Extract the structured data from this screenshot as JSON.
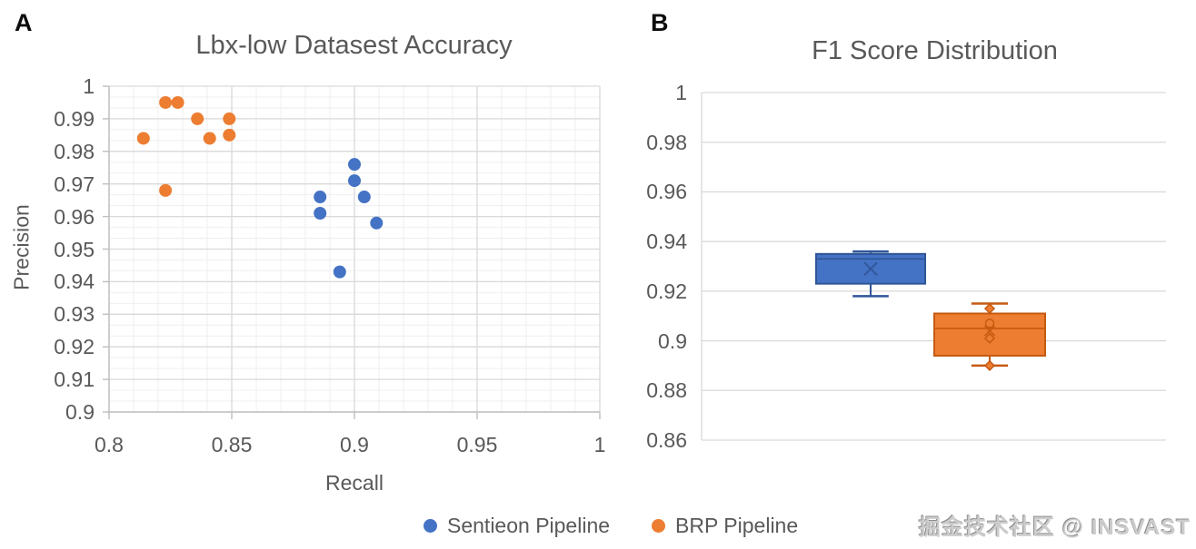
{
  "figure": {
    "panel_a_label": "A",
    "panel_b_label": "B"
  },
  "watermark": "掘金技术社区 @ INSVAST",
  "legend": {
    "items": [
      {
        "label": "Sentieon Pipeline",
        "color": "#4472C4"
      },
      {
        "label": "BRP Pipeline",
        "color": "#ED7D31"
      }
    ]
  },
  "colors": {
    "series_blue": "#4472C4",
    "series_blue_dark": "#2F5597",
    "series_orange": "#ED7D31",
    "series_orange_dark": "#C55A11",
    "text_gray": "#595959"
  },
  "chart_data": [
    {
      "type": "scatter",
      "title": "Lbx-low Datasest Accuracy",
      "xlabel": "Recall",
      "ylabel": "Precision",
      "xlim": [
        0.8,
        1.0
      ],
      "ylim": [
        0.9,
        1.0
      ],
      "grid": "major and minor, on",
      "legend_position": "bottom",
      "x_ticks": [
        {
          "value": 0.8,
          "label": "0.8"
        },
        {
          "value": 0.85,
          "label": "0.85"
        },
        {
          "value": 0.9,
          "label": "0.9"
        },
        {
          "value": 0.95,
          "label": "0.95"
        },
        {
          "value": 1.0,
          "label": "1"
        }
      ],
      "y_ticks": [
        {
          "value": 1.0,
          "label": "1"
        },
        {
          "value": 0.99,
          "label": "0.99"
        },
        {
          "value": 0.98,
          "label": "0.98"
        },
        {
          "value": 0.97,
          "label": "0.97"
        },
        {
          "value": 0.96,
          "label": "0.96"
        },
        {
          "value": 0.95,
          "label": "0.95"
        },
        {
          "value": 0.94,
          "label": "0.94"
        },
        {
          "value": 0.93,
          "label": "0.93"
        },
        {
          "value": 0.92,
          "label": "0.92"
        },
        {
          "value": 0.91,
          "label": "0.91"
        },
        {
          "value": 0.9,
          "label": "0.9"
        }
      ],
      "series": [
        {
          "name": "Sentieon Pipeline",
          "color": "#4472C4",
          "points": [
            [
              0.9,
              0.976
            ],
            [
              0.9,
              0.971
            ],
            [
              0.904,
              0.966
            ],
            [
              0.886,
              0.966
            ],
            [
              0.886,
              0.961
            ],
            [
              0.909,
              0.958
            ],
            [
              0.894,
              0.943
            ]
          ]
        },
        {
          "name": "BRP Pipeline",
          "color": "#ED7D31",
          "points": [
            [
              0.814,
              0.984
            ],
            [
              0.823,
              0.995
            ],
            [
              0.828,
              0.995
            ],
            [
              0.836,
              0.99
            ],
            [
              0.841,
              0.984
            ],
            [
              0.849,
              0.99
            ],
            [
              0.849,
              0.985
            ],
            [
              0.823,
              0.968
            ]
          ]
        }
      ]
    },
    {
      "type": "boxplot",
      "title": "F1 Score Distribution",
      "xlabel": "",
      "ylabel": "",
      "ylim": [
        0.86,
        1.0
      ],
      "grid": "major horizontal only",
      "y_ticks": [
        {
          "value": 1.0,
          "label": "1"
        },
        {
          "value": 0.98,
          "label": "0.98"
        },
        {
          "value": 0.96,
          "label": "0.96"
        },
        {
          "value": 0.94,
          "label": "0.94"
        },
        {
          "value": 0.92,
          "label": "0.92"
        },
        {
          "value": 0.9,
          "label": "0.9"
        },
        {
          "value": 0.88,
          "label": "0.88"
        },
        {
          "value": 0.86,
          "label": "0.86"
        }
      ],
      "boxes": [
        {
          "name": "Sentieon Pipeline",
          "fill": "#4472C4",
          "border": "#2F5597",
          "whisker_low": 0.918,
          "q1": 0.923,
          "median": 0.933,
          "q3": 0.935,
          "whisker_high": 0.936,
          "mean": 0.929,
          "outliers": []
        },
        {
          "name": "BRP Pipeline",
          "fill": "#ED7D31",
          "border": "#C55A11",
          "whisker_low": 0.89,
          "q1": 0.894,
          "median": 0.905,
          "q3": 0.911,
          "whisker_high": 0.915,
          "mean": 0.904,
          "outliers": [
            {
              "shape": "diamond-filled",
              "value": 0.913
            },
            {
              "shape": "circle-open",
              "value": 0.907
            },
            {
              "shape": "diamond-open",
              "value": 0.901
            },
            {
              "shape": "diamond-filled",
              "value": 0.89
            }
          ]
        }
      ]
    }
  ]
}
